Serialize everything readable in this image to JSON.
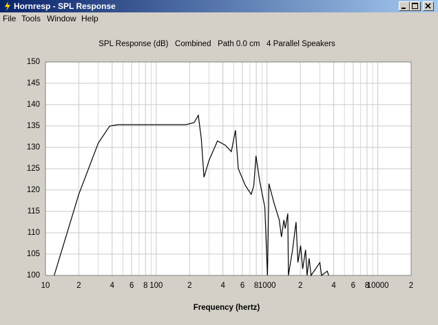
{
  "window": {
    "title": "Hornresp - SPL Response",
    "menu": [
      "File",
      "Tools",
      "Window",
      "Help"
    ]
  },
  "chart_data": {
    "type": "line",
    "title": "SPL Response (dB)   Combined   Path 0.0 cm   4 Parallel Speakers",
    "x_label": "Frequency (hertz)",
    "x_scale": "log",
    "xlim": [
      10,
      20000
    ],
    "ylim": [
      100,
      150
    ],
    "yticks": [
      100,
      105,
      110,
      115,
      120,
      125,
      130,
      135,
      140,
      145,
      150
    ],
    "xticks": [
      {
        "value": 10,
        "label": "10"
      },
      {
        "value": 20,
        "label": "2"
      },
      {
        "value": 40,
        "label": "4"
      },
      {
        "value": 60,
        "label": "6"
      },
      {
        "value": 80,
        "label": "8"
      },
      {
        "value": 100,
        "label": "100"
      },
      {
        "value": 200,
        "label": "2"
      },
      {
        "value": 400,
        "label": "4"
      },
      {
        "value": 600,
        "label": "6"
      },
      {
        "value": 800,
        "label": "8"
      },
      {
        "value": 1000,
        "label": "1000"
      },
      {
        "value": 2000,
        "label": "2"
      },
      {
        "value": 4000,
        "label": "4"
      },
      {
        "value": 6000,
        "label": "6"
      },
      {
        "value": 8000,
        "label": "8"
      },
      {
        "value": 10000,
        "label": "10000"
      },
      {
        "value": 20000,
        "label": "2"
      }
    ],
    "x_minor_ticks": [
      30,
      50,
      70,
      90,
      300,
      500,
      700,
      900,
      3000,
      5000,
      7000,
      9000
    ],
    "grid": true,
    "color": "#000000",
    "x": [
      12,
      20,
      30,
      38,
      45,
      100,
      185,
      220,
      240,
      255,
      270,
      300,
      357,
      420,
      476,
      519,
      550,
      640,
      720,
      760,
      795,
      860,
      955,
      1010,
      1040,
      1155,
      1290,
      1350,
      1420,
      1460,
      1540,
      1560,
      1700,
      1830,
      1900,
      2010,
      2100,
      2230,
      2300,
      2400,
      2500,
      3000,
      3100,
      3500,
      3600
    ],
    "values": [
      100,
      119,
      131,
      135,
      135.3,
      135.3,
      135.3,
      135.8,
      137.5,
      132,
      123,
      127,
      131.5,
      130.5,
      129,
      134,
      125,
      121,
      119,
      121,
      128,
      122,
      116,
      100,
      121.5,
      117,
      113,
      109,
      113,
      111,
      114.5,
      100,
      106,
      112.5,
      103,
      107,
      101.5,
      106,
      100,
      104,
      100,
      103,
      100,
      101,
      100
    ]
  }
}
